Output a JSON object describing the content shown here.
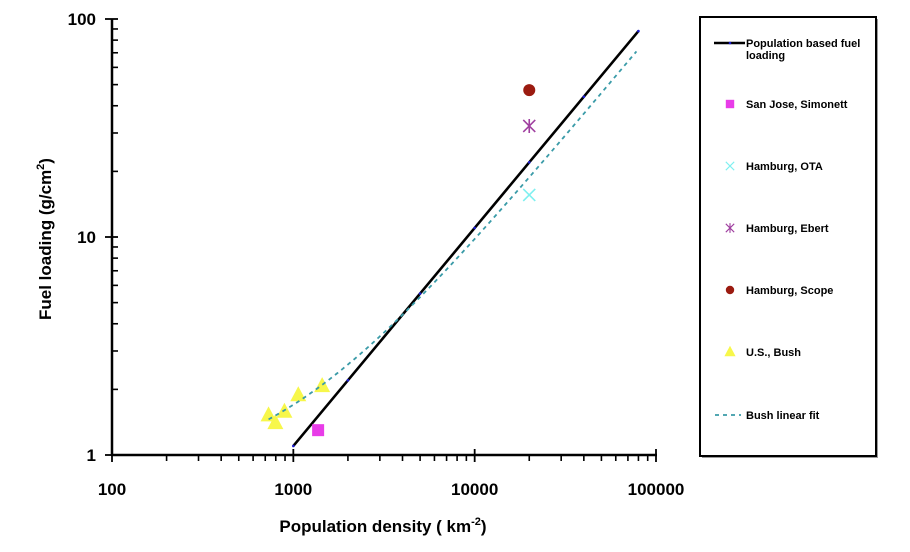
{
  "chart_data": {
    "type": "scatter",
    "title": "",
    "xlabel": "Population density ( km",
    "xlabel_sup": "-2",
    "xlabel_end": ")",
    "ylabel": "Fuel loading (g/cm",
    "ylabel_sup": "2",
    "ylabel_end": ")",
    "xscale": "log",
    "yscale": "log",
    "xlim": [
      100,
      100000
    ],
    "ylim": [
      1,
      100
    ],
    "x_ticks": [
      {
        "value": 100,
        "label": "100"
      },
      {
        "value": 1000,
        "label": "1000"
      },
      {
        "value": 10000,
        "label": "10000"
      },
      {
        "value": 100000,
        "label": "100000"
      }
    ],
    "y_ticks": [
      {
        "value": 1,
        "label": "1"
      },
      {
        "value": 10,
        "label": "10"
      },
      {
        "value": 100,
        "label": "100"
      }
    ],
    "grid": false,
    "legend_position": "right",
    "series": [
      {
        "name": "Population based fuel loading",
        "label_lines": [
          "Population based fuel",
          "loading"
        ],
        "kind": "line",
        "color": "#000000",
        "marker_color": "#1a1acc",
        "x": [
          1000,
          2000,
          5000,
          10000,
          20000,
          40000,
          80000
        ],
        "y": [
          1.1,
          2.2,
          5.5,
          11,
          22,
          44,
          88
        ]
      },
      {
        "name": "San Jose, Simonett",
        "label_lines": [
          "San Jose, Simonett"
        ],
        "kind": "marker",
        "marker": "square",
        "color": "#e83ce8",
        "x": [
          1370
        ],
        "y": [
          1.3
        ]
      },
      {
        "name": "Hamburg, OTA",
        "label_lines": [
          "Hamburg, OTA"
        ],
        "kind": "marker",
        "marker": "x",
        "color": "#7ff0f0",
        "x": [
          20000
        ],
        "y": [
          15.6
        ]
      },
      {
        "name": "Hamburg, Ebert",
        "label_lines": [
          "Hamburg, Ebert"
        ],
        "kind": "marker",
        "marker": "asterisk",
        "color": "#a040a0",
        "x": [
          20000
        ],
        "y": [
          32.3
        ]
      },
      {
        "name": "Hamburg, Scope",
        "label_lines": [
          "Hamburg, Scope"
        ],
        "kind": "marker",
        "marker": "circle",
        "color": "#9b1b10",
        "x": [
          20000
        ],
        "y": [
          47.2
        ]
      },
      {
        "name": "U.S., Bush",
        "label_lines": [
          "U.S., Bush"
        ],
        "kind": "marker",
        "marker": "triangle",
        "color": "#f7f74a",
        "x": [
          730,
          796,
          893,
          1065,
          1442
        ],
        "y": [
          1.52,
          1.4,
          1.58,
          1.88,
          2.07
        ]
      },
      {
        "name": "Bush linear fit",
        "label_lines": [
          "Bush linear fit"
        ],
        "kind": "dashed",
        "color": "#3a9ba8",
        "fit": {
          "intercept": 0.8,
          "slope": 0.0009
        },
        "x_range": [
          730,
          78000
        ]
      }
    ]
  }
}
